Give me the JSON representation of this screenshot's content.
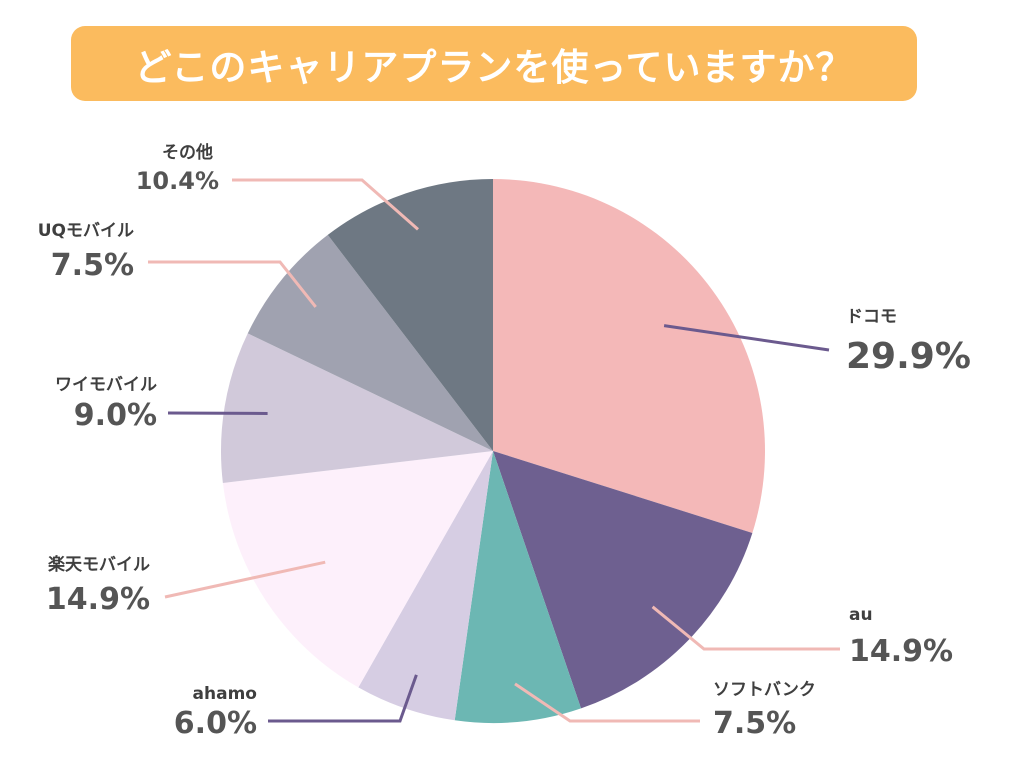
{
  "title": "どこのキャリアプランを使っていますか？",
  "chart_data": {
    "type": "pie",
    "title": "どこのキャリアプランを使っていますか？",
    "unit": "%",
    "start": "12 o'clock, clockwise",
    "slices": [
      {
        "key": "docomo",
        "label": "ドコモ",
        "value": 29.9,
        "value_label": "29.9%",
        "color": "#f4b8b8",
        "leader": "#6b5a8e"
      },
      {
        "key": "au",
        "label": "au",
        "value": 14.9,
        "value_label": "14.9%",
        "color": "#6e6090",
        "leader": "#f0b9b5"
      },
      {
        "key": "softbank",
        "label": "ソフトバンク",
        "value": 7.5,
        "value_label": "7.5%",
        "color": "#6cb7b3",
        "leader": "#f0b9b5"
      },
      {
        "key": "ahamo",
        "label": "ahamo",
        "value": 6.0,
        "value_label": "6.0%",
        "color": "#d6cde3",
        "leader": "#6b5a8e"
      },
      {
        "key": "rakuten",
        "label": "楽天モバイル",
        "value": 14.9,
        "value_label": "14.9%",
        "color": "#fdf0fb",
        "leader": "#f0b9b5"
      },
      {
        "key": "ymobile",
        "label": "ワイモバイル",
        "value": 9.0,
        "value_label": "9.0%",
        "color": "#d1c9da",
        "leader": "#6b5a8e"
      },
      {
        "key": "uq",
        "label": "UQモバイル",
        "value": 7.5,
        "value_label": "7.5%",
        "color": "#a0a2b0",
        "leader": "#f0b9b5"
      },
      {
        "key": "other",
        "label": "その他",
        "value": 10.4,
        "value_label": "10.4%",
        "color": "#6e7883",
        "leader": "#f0b9b5"
      }
    ]
  }
}
